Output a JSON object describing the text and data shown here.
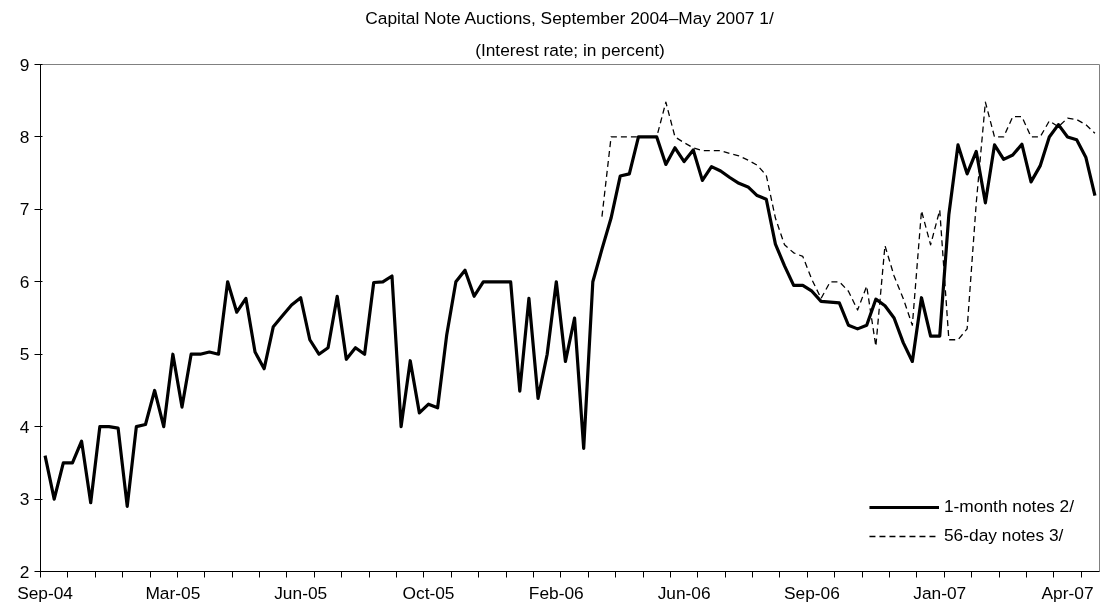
{
  "chart_data": {
    "type": "line",
    "title": "Capital Note Auctions, September 2004–May 2007 1/",
    "subtitle": "(Interest rate; in percent)",
    "categories": [
      "Sep-04",
      null,
      null,
      null,
      null,
      null,
      null,
      null,
      null,
      null,
      null,
      null,
      null,
      null,
      "Mar-05",
      null,
      null,
      null,
      null,
      null,
      null,
      null,
      null,
      null,
      null,
      null,
      null,
      null,
      "Jun-05",
      null,
      null,
      null,
      null,
      null,
      null,
      null,
      null,
      null,
      null,
      null,
      null,
      null,
      "Oct-05",
      null,
      null,
      null,
      null,
      null,
      null,
      null,
      null,
      null,
      null,
      null,
      null,
      null,
      "Feb-06",
      null,
      null,
      null,
      null,
      null,
      null,
      null,
      null,
      null,
      null,
      null,
      null,
      null,
      "Jun-06",
      null,
      null,
      null,
      null,
      null,
      null,
      null,
      null,
      null,
      null,
      null,
      null,
      null,
      "Sep-06",
      null,
      null,
      null,
      null,
      null,
      null,
      null,
      null,
      null,
      null,
      null,
      null,
      null,
      "Jan-07",
      null,
      null,
      null,
      null,
      null,
      null,
      null,
      null,
      null,
      null,
      null,
      null,
      null,
      "Apr-07",
      null,
      null,
      null
    ],
    "series": [
      {
        "name": "1-month notes 2/",
        "color": "#000000",
        "line_style": "solid",
        "values": [
          3.6,
          3.0,
          3.5,
          3.5,
          3.8,
          2.95,
          4.0,
          4.0,
          3.98,
          2.9,
          4.0,
          4.03,
          4.5,
          4.0,
          5.0,
          4.27,
          5.0,
          5.0,
          5.03,
          5.0,
          6.0,
          5.58,
          5.77,
          5.03,
          4.8,
          5.38,
          5.53,
          5.68,
          5.78,
          5.2,
          5.0,
          5.09,
          5.8,
          4.93,
          5.09,
          5.0,
          5.99,
          6.0,
          6.08,
          4.0,
          4.91,
          4.19,
          4.31,
          4.26,
          5.27,
          6.0,
          6.16,
          5.8,
          6.0,
          6.0,
          6.0,
          6.0,
          4.49,
          5.77,
          4.39,
          5.0,
          6.0,
          4.9,
          5.5,
          3.7,
          6.0,
          6.45,
          6.88,
          7.46,
          7.49,
          8.0,
          8.0,
          8.0,
          7.62,
          7.85,
          7.66,
          7.82,
          7.4,
          7.59,
          7.53,
          7.44,
          7.36,
          7.31,
          7.19,
          7.14,
          6.52,
          6.22,
          5.95,
          5.95,
          5.87,
          5.73,
          5.72,
          5.71,
          5.4,
          5.35,
          5.4,
          5.76,
          5.67,
          5.5,
          5.16,
          4.9,
          5.78,
          5.25,
          5.25,
          6.93,
          7.89,
          7.49,
          7.8,
          7.09,
          7.89,
          7.69,
          7.75,
          7.9,
          7.38,
          7.6,
          8.0,
          8.17,
          8.0,
          7.96,
          7.72,
          7.19
        ]
      },
      {
        "name": "56-day notes 3/",
        "color": "#000000",
        "line_style": "dashed",
        "values": [
          null,
          null,
          null,
          null,
          null,
          null,
          null,
          null,
          null,
          null,
          null,
          null,
          null,
          null,
          null,
          null,
          null,
          null,
          null,
          null,
          null,
          null,
          null,
          null,
          null,
          null,
          null,
          null,
          null,
          null,
          null,
          null,
          null,
          null,
          null,
          null,
          null,
          null,
          null,
          null,
          null,
          null,
          null,
          null,
          null,
          null,
          null,
          null,
          null,
          null,
          null,
          null,
          null,
          null,
          null,
          null,
          null,
          null,
          null,
          null,
          null,
          6.9,
          8.0,
          8.0,
          8.0,
          8.0,
          8.0,
          8.0,
          8.48,
          8.0,
          7.92,
          7.85,
          7.81,
          7.81,
          7.81,
          7.77,
          7.74,
          7.68,
          7.61,
          7.47,
          6.88,
          6.51,
          6.4,
          6.35,
          6.03,
          5.77,
          6.0,
          6.0,
          5.87,
          5.61,
          5.94,
          5.11,
          6.5,
          6.08,
          5.77,
          5.4,
          6.98,
          6.51,
          6.99,
          5.2,
          5.2,
          5.35,
          7.09,
          8.48,
          8.0,
          8.0,
          8.28,
          8.28,
          8.0,
          8.0,
          8.22,
          8.14,
          8.26,
          8.24,
          8.17,
          8.05
        ]
      }
    ],
    "ylim": [
      2,
      9
    ],
    "yticks": [
      2,
      3,
      4,
      5,
      6,
      7,
      8,
      9
    ],
    "grid": false,
    "legend": "bottom right",
    "marker": "none"
  }
}
